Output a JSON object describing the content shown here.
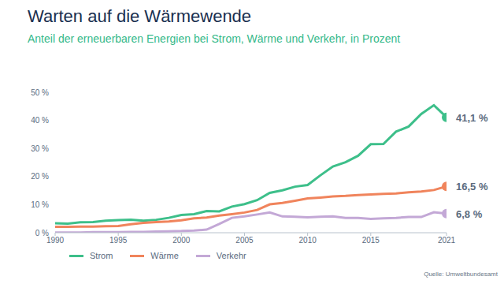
{
  "chart_data": {
    "type": "line",
    "title": "Warten auf die Wärmewende",
    "subtitle": "Anteil der erneuerbaren Energien bei Strom, Wärme und Verkehr, in Prozent",
    "source": "Quelle: Umweltbundesamt",
    "x": [
      1990,
      1991,
      1992,
      1993,
      1994,
      1995,
      1996,
      1997,
      1998,
      1999,
      2000,
      2001,
      2002,
      2003,
      2004,
      2005,
      2006,
      2007,
      2008,
      2009,
      2010,
      2011,
      2012,
      2013,
      2014,
      2015,
      2016,
      2017,
      2018,
      2019,
      2020,
      2021
    ],
    "series": [
      {
        "name": "Strom",
        "color": "#3dbf8a",
        "values": [
          3.4,
          3.2,
          3.7,
          3.8,
          4.3,
          4.5,
          4.6,
          4.3,
          4.6,
          5.3,
          6.3,
          6.6,
          7.7,
          7.6,
          9.3,
          10.2,
          11.6,
          14.2,
          15.1,
          16.4,
          17.0,
          20.4,
          23.6,
          25.1,
          27.4,
          31.5,
          31.6,
          36.0,
          37.8,
          42.3,
          45.4,
          41.1
        ],
        "value_labels": [
          null,
          null,
          null,
          null,
          null,
          null,
          null,
          null,
          null,
          null,
          null,
          null,
          null,
          null,
          null,
          null,
          null,
          null,
          null,
          null,
          null,
          null,
          null,
          null,
          null,
          null,
          null,
          null,
          null,
          null,
          null,
          "41,1 %"
        ]
      },
      {
        "name": "Wärme",
        "color": "#f0845c",
        "values": [
          2.1,
          2.1,
          2.2,
          2.2,
          2.3,
          2.4,
          3.0,
          3.5,
          3.8,
          4.0,
          4.4,
          5.1,
          5.4,
          6.1,
          6.6,
          7.2,
          8.1,
          10.1,
          10.6,
          11.4,
          12.2,
          12.5,
          12.9,
          13.1,
          13.4,
          13.6,
          13.8,
          14.0,
          14.4,
          14.7,
          15.2,
          16.5
        ],
        "value_labels": [
          null,
          null,
          null,
          null,
          null,
          null,
          null,
          null,
          null,
          null,
          null,
          null,
          null,
          null,
          null,
          null,
          null,
          null,
          null,
          null,
          null,
          null,
          null,
          null,
          null,
          null,
          null,
          null,
          null,
          null,
          null,
          "16,5 %"
        ]
      },
      {
        "name": "Verkehr",
        "color": "#c3a8d6",
        "values": [
          0.1,
          0.1,
          0.1,
          0.2,
          0.2,
          0.2,
          0.3,
          0.3,
          0.4,
          0.5,
          0.6,
          0.8,
          1.1,
          3.1,
          5.3,
          5.8,
          6.5,
          7.2,
          5.8,
          5.7,
          5.5,
          5.7,
          5.8,
          5.3,
          5.3,
          4.9,
          5.1,
          5.3,
          5.6,
          5.6,
          7.3,
          6.8
        ],
        "value_labels": [
          null,
          null,
          null,
          null,
          null,
          null,
          null,
          null,
          null,
          null,
          null,
          null,
          null,
          null,
          null,
          null,
          null,
          null,
          null,
          null,
          null,
          null,
          null,
          null,
          null,
          null,
          null,
          null,
          null,
          null,
          null,
          "6,8 %"
        ]
      }
    ],
    "xlim": [
      1990,
      2021
    ],
    "xticks": [
      1990,
      1995,
      2000,
      2005,
      2010,
      2015,
      2021
    ],
    "ylim": [
      0,
      50
    ],
    "yticks": [
      {
        "value": 0,
        "label": "0 %"
      },
      {
        "value": 10,
        "label": "10 %"
      },
      {
        "value": 20,
        "label": "20 %"
      },
      {
        "value": 30,
        "label": "30 %"
      },
      {
        "value": 40,
        "label": "40 %"
      },
      {
        "value": 50,
        "label": "50 %"
      }
    ],
    "grid": false,
    "legend": "bottom-left",
    "data_labels": true,
    "marker": "none"
  }
}
